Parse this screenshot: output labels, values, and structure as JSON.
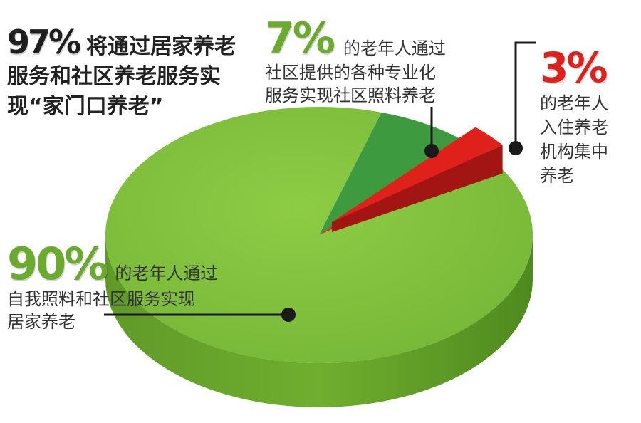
{
  "chart_data": {
    "type": "pie",
    "slices": [
      {
        "label": "90%",
        "value": 90,
        "description_lines": [
          "的老年人通过",
          "自我照料和社区服务实现",
          "居家养老"
        ],
        "color": "#7fbf3a"
      },
      {
        "label": "7%",
        "value": 7,
        "description_lines": [
          "的老年人通过",
          "社区提供的各种专业化",
          "服务实现社区照料养老"
        ],
        "color": "#3e9a3e"
      },
      {
        "label": "3%",
        "value": 3,
        "description_lines": [
          "的老年人",
          "入住养老",
          "机构集中",
          "养老"
        ],
        "color": "#e0201b"
      }
    ],
    "headline": {
      "value": "97%",
      "lines": [
        "将通过居家养老",
        "服务和社区养老服务实",
        "现“家门口养老”"
      ]
    }
  }
}
